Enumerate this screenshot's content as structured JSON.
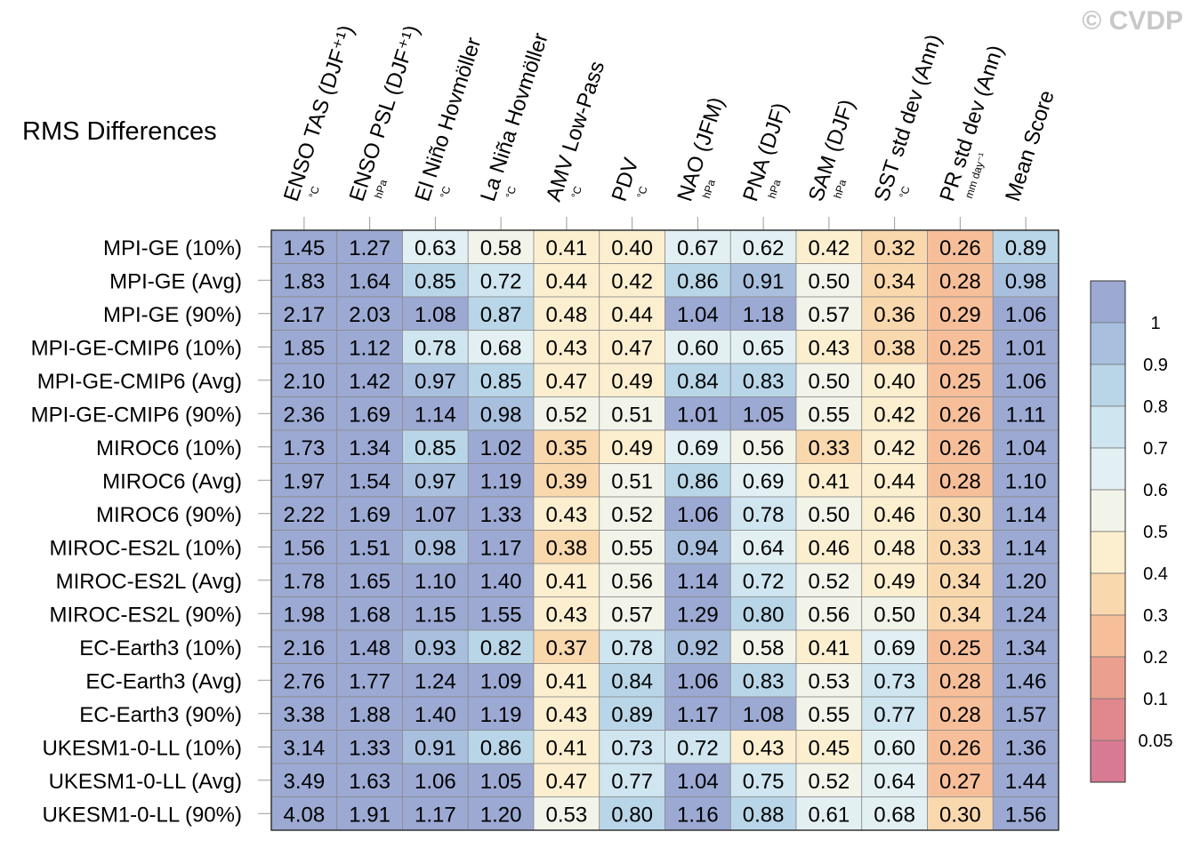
{
  "watermark": "© CVDP",
  "chart_data": {
    "type": "heatmap",
    "title": "RMS Differences",
    "columns": [
      {
        "label": "ENSO TAS (DJF⁺¹)",
        "unit": "°C"
      },
      {
        "label": "ENSO PSL (DJF⁺¹)",
        "unit": "hPa"
      },
      {
        "label": "El Niño Hovmöller",
        "unit": "°C"
      },
      {
        "label": "La Niña Hovmöller",
        "unit": "°C"
      },
      {
        "label": "AMV Low-Pass",
        "unit": "°C"
      },
      {
        "label": "PDV",
        "unit": "°C"
      },
      {
        "label": "NAO (JFM)",
        "unit": "hPa"
      },
      {
        "label": "PNA (DJF)",
        "unit": "hPa"
      },
      {
        "label": "SAM (DJF)",
        "unit": "hPa"
      },
      {
        "label": "SST std dev (Ann)",
        "unit": "°C"
      },
      {
        "label": "PR std dev (Ann)",
        "unit": "mm day⁻¹"
      },
      {
        "label": "Mean Score",
        "unit": ""
      }
    ],
    "rows": [
      "MPI-GE (10%)",
      "MPI-GE (Avg)",
      "MPI-GE (90%)",
      "MPI-GE-CMIP6 (10%)",
      "MPI-GE-CMIP6 (Avg)",
      "MPI-GE-CMIP6 (90%)",
      "MIROC6 (10%)",
      "MIROC6 (Avg)",
      "MIROC6 (90%)",
      "MIROC-ES2L (10%)",
      "MIROC-ES2L (Avg)",
      "MIROC-ES2L (90%)",
      "EC-Earth3 (10%)",
      "EC-Earth3 (Avg)",
      "EC-Earth3 (90%)",
      "UKESM1-0-LL (10%)",
      "UKESM1-0-LL (Avg)",
      "UKESM1-0-LL (90%)"
    ],
    "values": [
      [
        1.45,
        1.27,
        0.63,
        0.58,
        0.41,
        0.4,
        0.67,
        0.62,
        0.42,
        0.32,
        0.26,
        0.89
      ],
      [
        1.83,
        1.64,
        0.85,
        0.72,
        0.44,
        0.42,
        0.86,
        0.91,
        0.5,
        0.34,
        0.28,
        0.98
      ],
      [
        2.17,
        2.03,
        1.08,
        0.87,
        0.48,
        0.44,
        1.04,
        1.18,
        0.57,
        0.36,
        0.29,
        1.06
      ],
      [
        1.85,
        1.12,
        0.78,
        0.68,
        0.43,
        0.47,
        0.6,
        0.65,
        0.43,
        0.38,
        0.25,
        1.01
      ],
      [
        2.1,
        1.42,
        0.97,
        0.85,
        0.47,
        0.49,
        0.84,
        0.83,
        0.5,
        0.4,
        0.25,
        1.06
      ],
      [
        2.36,
        1.69,
        1.14,
        0.98,
        0.52,
        0.51,
        1.01,
        1.05,
        0.55,
        0.42,
        0.26,
        1.11
      ],
      [
        1.73,
        1.34,
        0.85,
        1.02,
        0.35,
        0.49,
        0.69,
        0.56,
        0.33,
        0.42,
        0.26,
        1.04
      ],
      [
        1.97,
        1.54,
        0.97,
        1.19,
        0.39,
        0.51,
        0.86,
        0.69,
        0.41,
        0.44,
        0.28,
        1.1
      ],
      [
        2.22,
        1.69,
        1.07,
        1.33,
        0.43,
        0.52,
        1.06,
        0.78,
        0.5,
        0.46,
        0.3,
        1.14
      ],
      [
        1.56,
        1.51,
        0.98,
        1.17,
        0.38,
        0.55,
        0.94,
        0.64,
        0.46,
        0.48,
        0.33,
        1.14
      ],
      [
        1.78,
        1.65,
        1.1,
        1.4,
        0.41,
        0.56,
        1.14,
        0.72,
        0.52,
        0.49,
        0.34,
        1.2
      ],
      [
        1.98,
        1.68,
        1.15,
        1.55,
        0.43,
        0.57,
        1.29,
        0.8,
        0.56,
        0.5,
        0.34,
        1.24
      ],
      [
        2.16,
        1.48,
        0.93,
        0.82,
        0.37,
        0.78,
        0.92,
        0.58,
        0.41,
        0.69,
        0.25,
        1.34
      ],
      [
        2.76,
        1.77,
        1.24,
        1.09,
        0.41,
        0.84,
        1.06,
        0.83,
        0.53,
        0.73,
        0.28,
        1.46
      ],
      [
        3.38,
        1.88,
        1.4,
        1.19,
        0.43,
        0.89,
        1.17,
        1.08,
        0.55,
        0.77,
        0.28,
        1.57
      ],
      [
        3.14,
        1.33,
        0.91,
        0.86,
        0.41,
        0.73,
        0.72,
        0.43,
        0.45,
        0.6,
        0.26,
        1.36
      ],
      [
        3.49,
        1.63,
        1.06,
        1.05,
        0.47,
        0.77,
        1.04,
        0.75,
        0.52,
        0.64,
        0.27,
        1.44
      ],
      [
        4.08,
        1.91,
        1.17,
        1.2,
        0.53,
        0.8,
        1.16,
        0.88,
        0.61,
        0.68,
        0.3,
        1.56
      ]
    ],
    "colorbar": {
      "boundaries": [
        1,
        0.9,
        0.8,
        0.7,
        0.6,
        0.5,
        0.4,
        0.3,
        0.2,
        0.1,
        0.05
      ],
      "labels": [
        "1",
        "0.9",
        "0.8",
        "0.7",
        "0.6",
        "0.5",
        "0.4",
        "0.3",
        "0.2",
        "0.1",
        "0.05"
      ],
      "colors": [
        "#9ba9d3",
        "#a8c0de",
        "#b9d6e8",
        "#cfe5ef",
        "#e3f0f3",
        "#f2f4ea",
        "#fcefd0",
        "#fad8ae",
        "#f6bf9a",
        "#eba08f",
        "#e0888e",
        "#d87a93"
      ]
    },
    "grid": true,
    "legend": "right"
  }
}
